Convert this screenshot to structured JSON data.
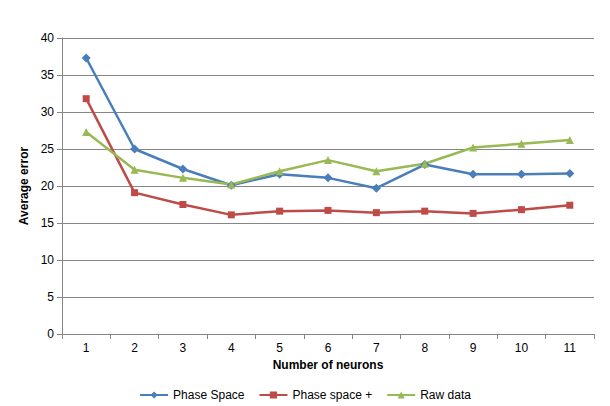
{
  "chart_data": {
    "type": "line",
    "x_label": "Number of neurons",
    "y_label": "Average error",
    "categories": [
      "1",
      "2",
      "3",
      "4",
      "5",
      "6",
      "7",
      "8",
      "9",
      "10",
      "11"
    ],
    "series": [
      {
        "name": "Phase Space",
        "color": "#4a7ebb",
        "marker": "diamond",
        "values": [
          37.3,
          25.0,
          22.3,
          20.1,
          21.6,
          21.1,
          19.7,
          22.9,
          21.6,
          21.6,
          21.7
        ]
      },
      {
        "name": "Phase space +",
        "color": "#be4b48",
        "marker": "square",
        "values": [
          31.8,
          19.1,
          17.5,
          16.1,
          16.6,
          16.7,
          16.4,
          16.6,
          16.3,
          16.8,
          17.4
        ]
      },
      {
        "name": "Raw data",
        "color": "#98b954",
        "marker": "triangle",
        "values": [
          27.3,
          22.2,
          21.1,
          20.2,
          22.0,
          23.5,
          22.0,
          23.0,
          25.2,
          25.7,
          26.2
        ]
      }
    ],
    "ylim": [
      0,
      40
    ],
    "yticks": [
      0,
      5,
      10,
      15,
      20,
      25,
      30,
      35,
      40
    ],
    "grid": true,
    "legend": "bottom"
  }
}
